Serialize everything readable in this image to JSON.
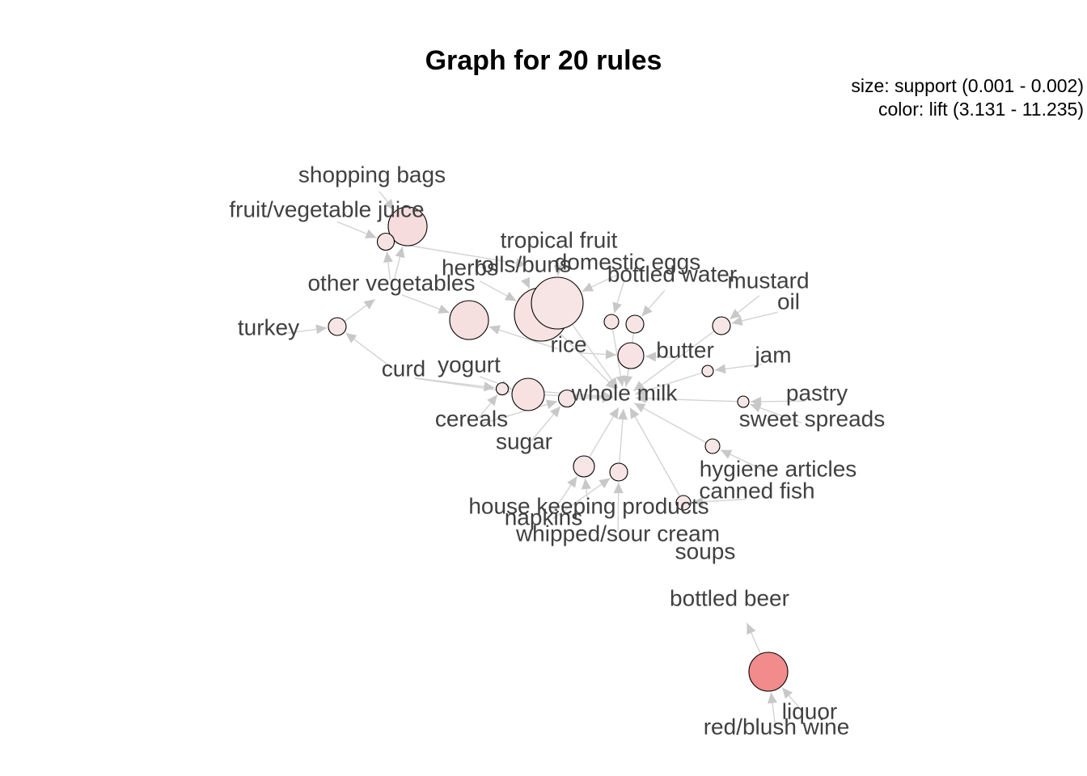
{
  "title": "Graph for 20 rules",
  "legend": {
    "size_line": "size: support (0.001 - 0.002)",
    "color_line": "color: lift (3.131 - 11.235)"
  },
  "colors": {
    "edge": "#d3d3d3",
    "arrow": "#c8c8c8",
    "label": "#404040",
    "node_stroke": "#000000",
    "low_lift": "#f7eaea",
    "high_lift": "#f28b8b"
  },
  "items": [
    {
      "id": "shopping_bags",
      "label": "shopping bags"
    },
    {
      "id": "fruit_vegetable_juice",
      "label": "fruit/vegetable juice"
    },
    {
      "id": "tropical_fruit",
      "label": "tropical fruit"
    },
    {
      "id": "herbs",
      "label": "herbs"
    },
    {
      "id": "rolls_buns",
      "label": "rolls/buns"
    },
    {
      "id": "domestic_eggs",
      "label": "domestic eggs"
    },
    {
      "id": "bottled_water",
      "label": "bottled water"
    },
    {
      "id": "mustard",
      "label": "mustard"
    },
    {
      "id": "oil",
      "label": "oil"
    },
    {
      "id": "other_vegetables",
      "label": "other vegetables"
    },
    {
      "id": "turkey",
      "label": "turkey"
    },
    {
      "id": "rice",
      "label": "rice"
    },
    {
      "id": "butter",
      "label": "butter"
    },
    {
      "id": "jam",
      "label": "jam"
    },
    {
      "id": "curd",
      "label": "curd"
    },
    {
      "id": "yogurt",
      "label": "yogurt"
    },
    {
      "id": "whole_milk",
      "label": "whole milk"
    },
    {
      "id": "pastry",
      "label": "pastry"
    },
    {
      "id": "sweet_spreads",
      "label": "sweet spreads"
    },
    {
      "id": "cereals",
      "label": "cereals"
    },
    {
      "id": "sugar",
      "label": "sugar"
    },
    {
      "id": "hygiene_articles",
      "label": "hygiene articles"
    },
    {
      "id": "canned_fish",
      "label": "canned fish"
    },
    {
      "id": "house_keeping_products",
      "label": "house keeping products"
    },
    {
      "id": "napkins",
      "label": "napkins"
    },
    {
      "id": "whipped_sour_cream",
      "label": "whipped/sour cream"
    },
    {
      "id": "soups",
      "label": "soups"
    },
    {
      "id": "bottled_beer",
      "label": "bottled beer"
    },
    {
      "id": "liquor",
      "label": "liquor"
    },
    {
      "id": "red_blush_wine",
      "label": "red/blush wine"
    }
  ],
  "rules": [
    {
      "id": "r1",
      "lhs": [
        "shopping_bags",
        "other_vegetables"
      ],
      "rhs": "fruit_vegetable_juice"
    },
    {
      "id": "r2",
      "lhs": [
        "fruit_vegetable_juice",
        "other_vegetables"
      ],
      "rhs": "tropical_fruit"
    },
    {
      "id": "r3",
      "lhs": [
        "herbs",
        "rolls_buns"
      ],
      "rhs": "whole_milk"
    },
    {
      "id": "r4",
      "lhs": [
        "tropical_fruit",
        "domestic_eggs"
      ],
      "rhs": "whole_milk"
    },
    {
      "id": "r5",
      "lhs": [
        "other_vegetables",
        "rice"
      ],
      "rhs": "yogurt"
    },
    {
      "id": "r6",
      "lhs": [
        "curd",
        "yogurt"
      ],
      "rhs": "whole_milk"
    },
    {
      "id": "r7",
      "lhs": [
        "turkey",
        "curd"
      ],
      "rhs": "other_vegetables"
    },
    {
      "id": "r8",
      "lhs": [
        "bottled_water"
      ],
      "rhs": "whole_milk"
    },
    {
      "id": "r9",
      "lhs": [
        "domestic_eggs"
      ],
      "rhs": "whole_milk"
    },
    {
      "id": "r10",
      "lhs": [
        "mustard",
        "oil"
      ],
      "rhs": "whole_milk"
    },
    {
      "id": "r11",
      "lhs": [
        "butter",
        "rice"
      ],
      "rhs": "whole_milk"
    },
    {
      "id": "r12",
      "lhs": [
        "jam"
      ],
      "rhs": "whole_milk"
    },
    {
      "id": "r13",
      "lhs": [
        "pastry",
        "sweet_spreads"
      ],
      "rhs": "whole_milk"
    },
    {
      "id": "r14",
      "lhs": [
        "cereals",
        "curd"
      ],
      "rhs": "whole_milk"
    },
    {
      "id": "r15",
      "lhs": [
        "sugar",
        "cereals"
      ],
      "rhs": "whole_milk"
    },
    {
      "id": "r16",
      "lhs": [
        "hygiene_articles"
      ],
      "rhs": "whole_milk"
    },
    {
      "id": "r17",
      "lhs": [
        "canned_fish"
      ],
      "rhs": "whole_milk"
    },
    {
      "id": "r18",
      "lhs": [
        "house_keeping_products",
        "napkins"
      ],
      "rhs": "whole_milk"
    },
    {
      "id": "r19",
      "lhs": [
        "napkins",
        "whipped_sour_cream"
      ],
      "rhs": "whole_milk"
    },
    {
      "id": "r20",
      "lhs": [
        "liquor",
        "red_blush_wine"
      ],
      "rhs": "bottled_beer"
    }
  ]
}
